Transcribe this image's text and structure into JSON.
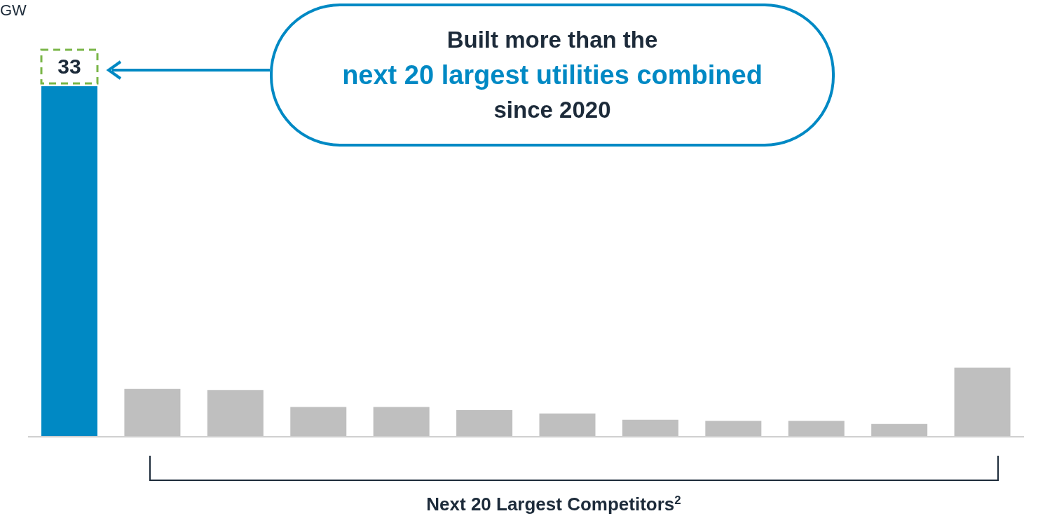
{
  "chart_data": {
    "type": "bar",
    "ylabel": "GW",
    "ylim": [
      0,
      33
    ],
    "categories": [
      null,
      null,
      null,
      null,
      null,
      null,
      null,
      null,
      null,
      null,
      null,
      null
    ],
    "values": [
      33,
      4.5,
      4.4,
      2.8,
      2.8,
      2.5,
      2.2,
      1.6,
      1.5,
      1.5,
      1.2,
      6.5
    ],
    "colors": [
      "#0089c4",
      "#bfbfbf",
      "#bfbfbf",
      "#bfbfbf",
      "#bfbfbf",
      "#bfbfbf",
      "#bfbfbf",
      "#bfbfbf",
      "#bfbfbf",
      "#bfbfbf",
      "#bfbfbf",
      "#bfbfbf"
    ],
    "value_labels": [
      "33",
      null,
      null,
      null,
      null,
      null,
      null,
      null,
      null,
      null,
      null,
      null
    ],
    "annotations": [
      "Built more than the",
      "next 20 largest utilities combined",
      "since 2020",
      "Next 20 Largest Competitors$^{2}$"
    ]
  }
}
